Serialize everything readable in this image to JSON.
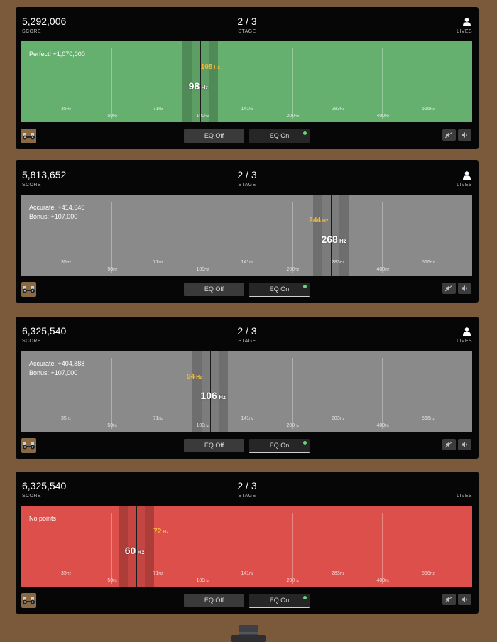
{
  "labels": {
    "score": "SCORE",
    "stage": "STAGE",
    "lives": "LIVES",
    "unit": "Hz"
  },
  "eq": {
    "off_label": "EQ Off",
    "on_label": "EQ On"
  },
  "ticks": [
    {
      "num": "35",
      "row": "low"
    },
    {
      "num": "50",
      "row": "high"
    },
    {
      "num": "71",
      "row": "low"
    },
    {
      "num": "100",
      "row": "high"
    },
    {
      "num": "141",
      "row": "low"
    },
    {
      "num": "200",
      "row": "high"
    },
    {
      "num": "283",
      "row": "low"
    },
    {
      "num": "400",
      "row": "high"
    },
    {
      "num": "566",
      "row": "low"
    }
  ],
  "icons": {
    "lives": "person-icon",
    "avatar": "binoculars-icon",
    "mute": "mute-icon",
    "volume": "speaker-icon"
  },
  "rounds": [
    {
      "score": "5,292,006",
      "stage": "2 / 3",
      "lives_icon": true,
      "board_color": "#66b06f",
      "messages": [
        "Perfect! +1,070,000"
      ],
      "answer": "98",
      "guess": "105",
      "answer_hz": 98,
      "guess_hz": 105,
      "band": [
        "#4f8a57",
        "#5d9e65"
      ]
    },
    {
      "score": "5,813,652",
      "stage": "2 / 3",
      "lives_icon": true,
      "board_color": "#8a8a8a",
      "messages": [
        "Accurate. +414,646",
        "Bonus: +107,000"
      ],
      "answer": "268",
      "guess": "244",
      "answer_hz": 268,
      "guess_hz": 244,
      "band": [
        "#6e6e6e",
        "#7c7c7c"
      ]
    },
    {
      "score": "6,325,540",
      "stage": "2 / 3",
      "lives_icon": true,
      "board_color": "#8a8a8a",
      "messages": [
        "Accurate. +404,888",
        "Bonus: +107,000"
      ],
      "answer": "106",
      "guess": "94",
      "answer_hz": 106,
      "guess_hz": 94,
      "band": [
        "#6e6e6e",
        "#7c7c7c"
      ]
    },
    {
      "score": "6,325,540",
      "stage": "2 / 3",
      "lives_icon": false,
      "board_color": "#dd4f4a",
      "messages": [
        "No points"
      ],
      "answer": "60",
      "guess": "72",
      "answer_hz": 60,
      "guess_hz": 72,
      "band": [
        "#ad3d39",
        "#c44541"
      ]
    }
  ]
}
